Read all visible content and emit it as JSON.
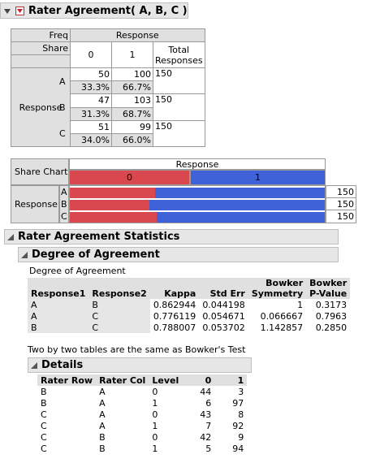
{
  "title": "Rater Agreement( A, B, C )",
  "contingency": {
    "freq_label": "Freq",
    "share_label": "Share",
    "response_col_header": "Response",
    "response_row_label": "Response",
    "cols": [
      "0",
      "1"
    ],
    "total_header_1": "Total",
    "total_header_2": "Responses",
    "rows": [
      {
        "label": "A",
        "freq": [
          "50",
          "100"
        ],
        "share": [
          "33.3%",
          "66.7%"
        ],
        "total": "150"
      },
      {
        "label": "B",
        "freq": [
          "47",
          "103"
        ],
        "share": [
          "31.3%",
          "68.7%"
        ],
        "total": "150"
      },
      {
        "label": "C",
        "freq": [
          "51",
          "99"
        ],
        "share": [
          "34.0%",
          "66.0%"
        ],
        "total": "150"
      }
    ]
  },
  "share_chart": {
    "label": "Share Chart",
    "response_header": "Response",
    "row_label": "Response",
    "legend": [
      "0",
      "1"
    ],
    "colors": {
      "zero": "#d9484f",
      "one": "#3f62d9"
    },
    "rows": [
      {
        "label": "A",
        "share0": 0.333,
        "total": "150"
      },
      {
        "label": "B",
        "share0": 0.313,
        "total": "150"
      },
      {
        "label": "C",
        "share0": 0.34,
        "total": "150"
      }
    ]
  },
  "agreement_stats": {
    "title": "Rater Agreement Statistics",
    "degree_title": "Degree of Agreement",
    "degree_caption": "Degree of Agreement",
    "headers": {
      "response1": "Response1",
      "response2": "Response2",
      "kappa": "Kappa",
      "stderr": "Std Err",
      "bowker_sym_1": "Bowker",
      "bowker_sym_2": "Symmetry",
      "bowker_p_1": "Bowker",
      "bowker_p_2": "P-Value"
    },
    "rows": [
      {
        "r1": "A",
        "r2": "B",
        "kappa": "0.862944",
        "stderr": "0.044198",
        "sym": "1",
        "p": "0.3173"
      },
      {
        "r1": "A",
        "r2": "C",
        "kappa": "0.776119",
        "stderr": "0.054671",
        "sym": "0.066667",
        "p": "0.7963"
      },
      {
        "r1": "B",
        "r2": "C",
        "kappa": "0.788007",
        "stderr": "0.053702",
        "sym": "1.142857",
        "p": "0.2850"
      }
    ],
    "note": "Two by two tables are the same as Bowker's Test"
  },
  "details": {
    "title": "Details",
    "headers": [
      "Rater Row",
      "Rater Col",
      "Level",
      "0",
      "1"
    ],
    "rows": [
      [
        "B",
        "A",
        "0",
        "44",
        "3"
      ],
      [
        "B",
        "A",
        "1",
        "6",
        "97"
      ],
      [
        "C",
        "A",
        "0",
        "43",
        "8"
      ],
      [
        "C",
        "A",
        "1",
        "7",
        "92"
      ],
      [
        "C",
        "B",
        "0",
        "42",
        "9"
      ],
      [
        "C",
        "B",
        "1",
        "5",
        "94"
      ]
    ]
  }
}
